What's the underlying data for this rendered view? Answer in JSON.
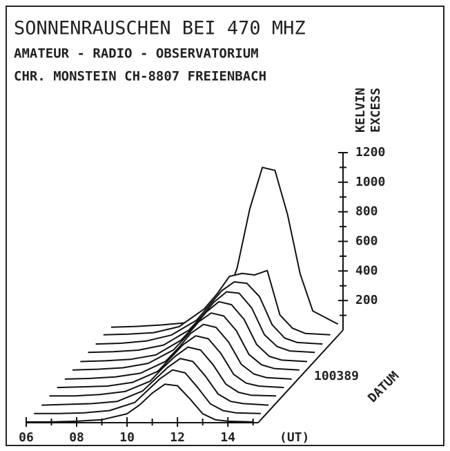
{
  "chart_data": {
    "type": "waterfall",
    "title": "SONNENRAUSCHEN BEI 470 MHZ",
    "subtitle": [
      "AMATEUR - RADIO - OBSERVATORIUM",
      "CHR. MONSTEIN CH-8807 FREIENBACH"
    ],
    "ylabel": [
      "KELVIN",
      "EXCESS"
    ],
    "xlabel": "(UT)",
    "zlabel": "DATUM",
    "ztick_label": "100389",
    "color": "#111111",
    "xlim": [
      6,
      15.2
    ],
    "xticks": [
      {
        "value": 6,
        "label": "06"
      },
      {
        "value": 8,
        "label": "08"
      },
      {
        "value": 10,
        "label": "10"
      },
      {
        "value": 12,
        "label": "12"
      },
      {
        "value": 14,
        "label": "14"
      }
    ],
    "xminorticks": [
      7,
      9,
      11,
      13,
      15
    ],
    "ylim": [
      0,
      1200
    ],
    "yticks": [
      200,
      400,
      600,
      800,
      1000,
      1200
    ],
    "yminorticks": [
      100,
      300,
      500,
      700,
      900,
      1100
    ],
    "x": [
      6,
      7,
      8,
      9,
      10,
      10.5,
      11,
      11.5,
      12,
      12.5,
      13,
      13.5,
      14,
      15
    ],
    "series": [
      {
        "values": [
          5,
          5,
          10,
          20,
          60,
          120,
          200,
          260,
          250,
          160,
          60,
          20,
          10,
          5
        ]
      },
      {
        "values": [
          5,
          5,
          10,
          25,
          80,
          160,
          240,
          300,
          280,
          180,
          70,
          25,
          10,
          5
        ]
      },
      {
        "values": [
          5,
          10,
          15,
          30,
          100,
          180,
          260,
          320,
          300,
          200,
          80,
          30,
          15,
          5
        ]
      },
      {
        "values": [
          10,
          10,
          20,
          40,
          110,
          200,
          280,
          340,
          320,
          220,
          90,
          35,
          15,
          10
        ]
      },
      {
        "values": [
          10,
          15,
          20,
          45,
          120,
          210,
          300,
          360,
          340,
          240,
          100,
          40,
          20,
          10
        ]
      },
      {
        "values": [
          10,
          15,
          25,
          50,
          130,
          220,
          320,
          380,
          360,
          260,
          110,
          45,
          20,
          10
        ]
      },
      {
        "values": [
          15,
          20,
          30,
          60,
          150,
          240,
          340,
          400,
          380,
          280,
          120,
          50,
          25,
          15
        ]
      },
      {
        "values": [
          15,
          20,
          30,
          60,
          160,
          250,
          350,
          420,
          400,
          300,
          130,
          50,
          25,
          15
        ]
      },
      {
        "values": [
          20,
          25,
          35,
          70,
          170,
          260,
          360,
          430,
          420,
          320,
          140,
          60,
          30,
          20
        ]
      },
      {
        "values": [
          20,
          25,
          40,
          80,
          180,
          280,
          380,
          440,
          430,
          340,
          150,
          60,
          30,
          20
        ]
      },
      {
        "values": [
          25,
          30,
          40,
          80,
          200,
          300,
          420,
          440,
          430,
          460,
          160,
          70,
          35,
          25
        ]
      },
      {
        "values": [
          20,
          25,
          35,
          50,
          90,
          180,
          420,
          820,
          1100,
          1080,
          780,
          380,
          130,
          40
        ]
      }
    ]
  }
}
